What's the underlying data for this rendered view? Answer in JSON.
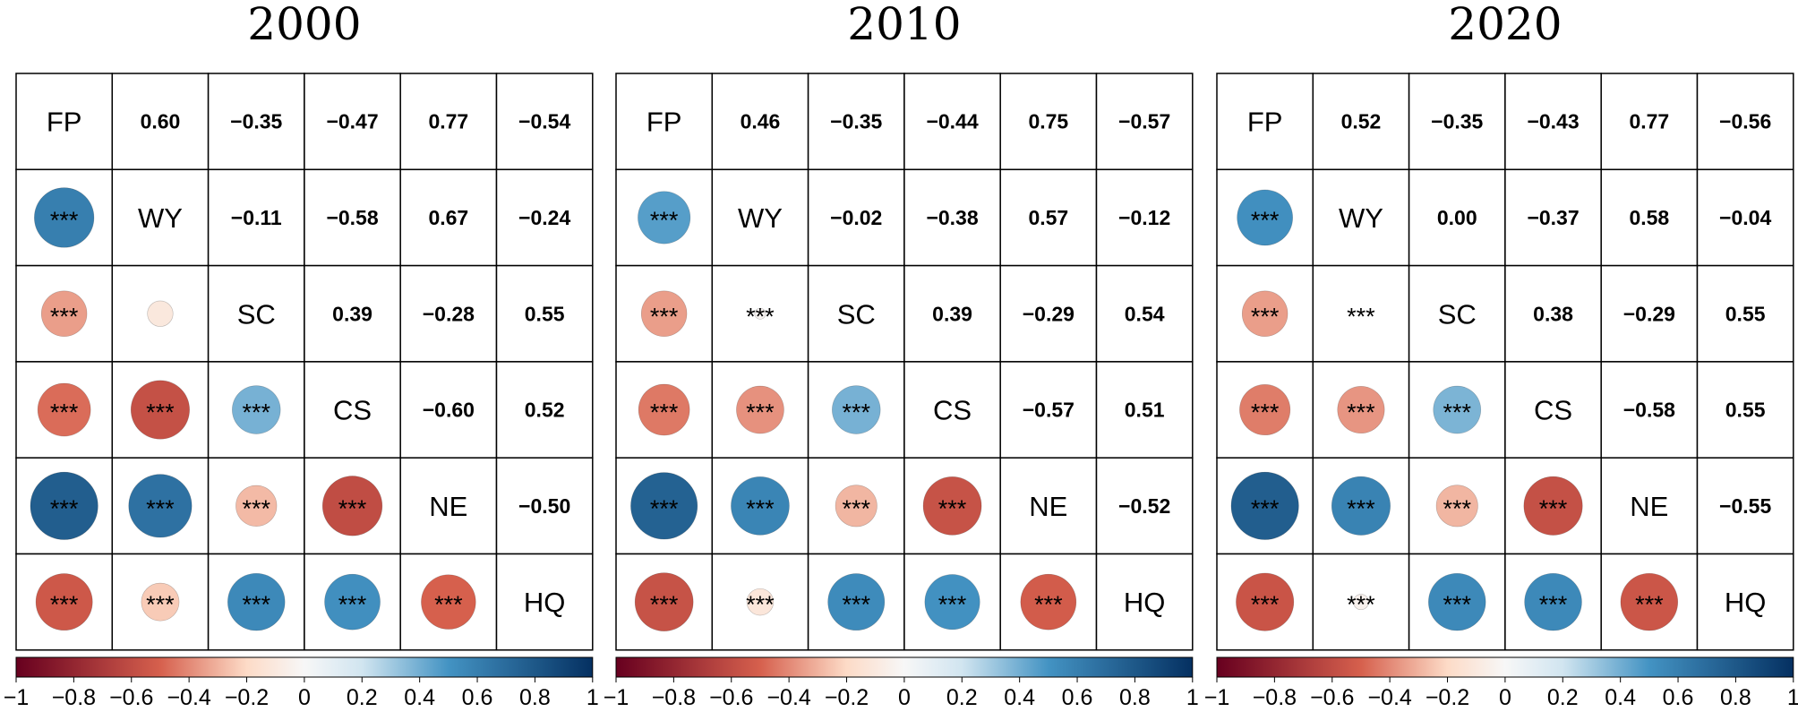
{
  "chart_data": [
    {
      "type": "heatmap",
      "subtype": "correlation-matrix",
      "title": "2000",
      "variables": [
        "FP",
        "WY",
        "SC",
        "CS",
        "NE",
        "HQ"
      ],
      "correlations": [
        [
          1,
          0.6,
          -0.35,
          -0.47,
          0.77,
          -0.54
        ],
        [
          0.6,
          1,
          -0.11,
          -0.58,
          0.67,
          -0.24
        ],
        [
          -0.35,
          -0.11,
          1,
          0.39,
          -0.28,
          0.55
        ],
        [
          -0.47,
          -0.58,
          0.39,
          1,
          -0.6,
          0.52
        ],
        [
          0.77,
          0.67,
          -0.28,
          -0.6,
          1,
          -0.5
        ],
        [
          -0.54,
          -0.24,
          0.55,
          0.52,
          -0.5,
          1
        ]
      ],
      "upper_labels": [
        [
          "",
          "0.60",
          "−0.35",
          "−0.47",
          "0.77",
          "−0.54"
        ],
        [
          "",
          "",
          "−0.11",
          "−0.58",
          "0.67",
          "−0.24"
        ],
        [
          "",
          "",
          "",
          "0.39",
          "−0.28",
          "0.55"
        ],
        [
          "",
          "",
          "",
          "",
          "−0.60",
          "0.52"
        ],
        [
          "",
          "",
          "",
          "",
          "",
          "−0.50"
        ],
        [
          "",
          "",
          "",
          "",
          "",
          ""
        ]
      ],
      "significance": [
        [
          "",
          "",
          "",
          "",
          "",
          ""
        ],
        [
          "***",
          "",
          "",
          "",
          "",
          ""
        ],
        [
          "***",
          "",
          "",
          "",
          "",
          ""
        ],
        [
          "***",
          "***",
          "***",
          "",
          "",
          ""
        ],
        [
          "***",
          "***",
          "***",
          "***",
          "",
          ""
        ],
        [
          "***",
          "***",
          "***",
          "***",
          "***",
          ""
        ]
      ],
      "colorbar": {
        "min": -1,
        "max": 1,
        "ticks": [
          "−1",
          "−0.8",
          "−0.6",
          "−0.4",
          "−0.2",
          "0",
          "0.2",
          "0.4",
          "0.6",
          "0.8",
          "1"
        ]
      }
    },
    {
      "type": "heatmap",
      "subtype": "correlation-matrix",
      "title": "2010",
      "variables": [
        "FP",
        "WY",
        "SC",
        "CS",
        "NE",
        "HQ"
      ],
      "correlations": [
        [
          1,
          0.46,
          -0.35,
          -0.44,
          0.75,
          -0.57
        ],
        [
          0.46,
          1,
          -0.02,
          -0.38,
          0.57,
          -0.12
        ],
        [
          -0.35,
          -0.02,
          1,
          0.39,
          -0.29,
          0.54
        ],
        [
          -0.44,
          -0.38,
          0.39,
          1,
          -0.57,
          0.51
        ],
        [
          0.75,
          0.57,
          -0.29,
          -0.57,
          1,
          -0.52
        ],
        [
          -0.57,
          -0.12,
          0.54,
          0.51,
          -0.52,
          1
        ]
      ],
      "upper_labels": [
        [
          "",
          "0.46",
          "−0.35",
          "−0.44",
          "0.75",
          "−0.57"
        ],
        [
          "",
          "",
          "−0.02",
          "−0.38",
          "0.57",
          "−0.12"
        ],
        [
          "",
          "",
          "",
          "0.39",
          "−0.29",
          "0.54"
        ],
        [
          "",
          "",
          "",
          "",
          "−0.57",
          "0.51"
        ],
        [
          "",
          "",
          "",
          "",
          "",
          "−0.52"
        ],
        [
          "",
          "",
          "",
          "",
          "",
          ""
        ]
      ],
      "significance": [
        [
          "",
          "",
          "",
          "",
          "",
          ""
        ],
        [
          "***",
          "",
          "",
          "",
          "",
          ""
        ],
        [
          "***",
          "***",
          "",
          "",
          "",
          ""
        ],
        [
          "***",
          "***",
          "***",
          "",
          "",
          ""
        ],
        [
          "***",
          "***",
          "***",
          "***",
          "",
          ""
        ],
        [
          "***",
          "***",
          "***",
          "***",
          "***",
          ""
        ]
      ],
      "colorbar": {
        "min": -1,
        "max": 1,
        "ticks": [
          "−1",
          "−0.8",
          "−0.6",
          "−0.4",
          "−0.2",
          "0",
          "0.2",
          "0.4",
          "0.6",
          "0.8",
          "1"
        ]
      }
    },
    {
      "type": "heatmap",
      "subtype": "correlation-matrix",
      "title": "2020",
      "variables": [
        "FP",
        "WY",
        "SC",
        "CS",
        "NE",
        "HQ"
      ],
      "correlations": [
        [
          1,
          0.52,
          -0.35,
          -0.43,
          0.77,
          -0.56
        ],
        [
          0.52,
          1,
          0.0,
          -0.37,
          0.58,
          -0.04
        ],
        [
          -0.35,
          0.0,
          1,
          0.38,
          -0.29,
          0.55
        ],
        [
          -0.43,
          -0.37,
          0.38,
          1,
          -0.58,
          0.55
        ],
        [
          0.77,
          0.58,
          -0.29,
          -0.58,
          1,
          -0.55
        ],
        [
          -0.56,
          -0.04,
          0.55,
          0.55,
          -0.55,
          1
        ]
      ],
      "upper_labels": [
        [
          "",
          "0.52",
          "−0.35",
          "−0.43",
          "0.77",
          "−0.56"
        ],
        [
          "",
          "",
          "0.00",
          "−0.37",
          "0.58",
          "−0.04"
        ],
        [
          "",
          "",
          "",
          "0.38",
          "−0.29",
          "0.55"
        ],
        [
          "",
          "",
          "",
          "",
          "−0.58",
          "0.55"
        ],
        [
          "",
          "",
          "",
          "",
          "",
          "−0.55"
        ],
        [
          "",
          "",
          "",
          "",
          "",
          ""
        ]
      ],
      "significance": [
        [
          "",
          "",
          "",
          "",
          "",
          ""
        ],
        [
          "***",
          "",
          "",
          "",
          "",
          ""
        ],
        [
          "***",
          "***",
          "",
          "",
          "",
          ""
        ],
        [
          "***",
          "***",
          "***",
          "",
          "",
          ""
        ],
        [
          "***",
          "***",
          "***",
          "***",
          "",
          ""
        ],
        [
          "***",
          "***",
          "***",
          "***",
          "***",
          ""
        ]
      ],
      "colorbar": {
        "min": -1,
        "max": 1,
        "ticks": [
          "−1",
          "−0.8",
          "−0.6",
          "−0.4",
          "−0.2",
          "0",
          "0.2",
          "0.4",
          "0.6",
          "0.8",
          "1"
        ]
      }
    }
  ],
  "colors": {
    "negative_strong": "#67001f",
    "negative_mid": "#d6604d",
    "negative_light": "#fddbc7",
    "neutral": "#f7f7f7",
    "positive_light": "#d1e5f0",
    "positive_mid": "#4393c3",
    "positive_strong": "#053061",
    "grid_line": "#000000"
  }
}
